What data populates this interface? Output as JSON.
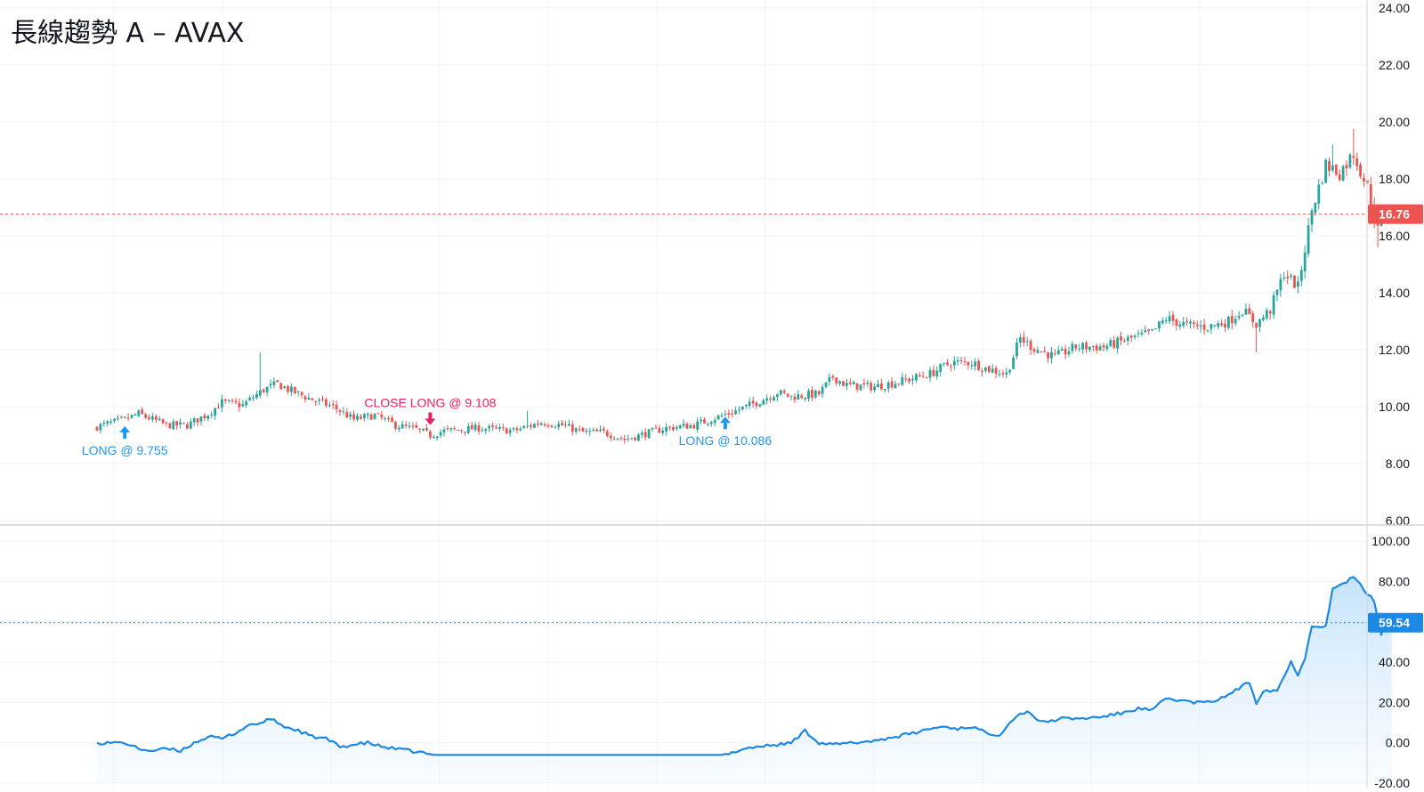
{
  "title": "長線趨勢 A – AVAX",
  "colors": {
    "up": "#26a69a",
    "down": "#ef5350",
    "long_marker": "#2196f3",
    "close_marker": "#e91e63",
    "equity_line": "#1e88e5",
    "equity_fill": "#e3f2fd",
    "price_line": "#ef5350",
    "equity_ref_line": "#1e88e5",
    "grid": "#f0f3fa",
    "axis_text": "#131722",
    "pane_divider": "#d1d4dc"
  },
  "chart_data": [
    {
      "type": "candlestick",
      "pane": "price",
      "ylim": [
        6,
        24
      ],
      "yticks": [
        "24.00",
        "22.00",
        "20.00",
        "18.00",
        "16.00",
        "14.00",
        "12.00",
        "10.00",
        "8.00",
        "6.00"
      ],
      "ytick_values": [
        24,
        22,
        20,
        18,
        16,
        14,
        12,
        10,
        8,
        6
      ],
      "last_price": 16.76,
      "last_price_label": "16.76",
      "grid": true,
      "close_anchors": [
        [
          0,
          9.3
        ],
        [
          8,
          9.55
        ],
        [
          12,
          9.75
        ],
        [
          16,
          9.55
        ],
        [
          20,
          9.35
        ],
        [
          26,
          9.35
        ],
        [
          32,
          9.75
        ],
        [
          36,
          10.15
        ],
        [
          42,
          10.05
        ],
        [
          48,
          10.6
        ],
        [
          52,
          10.8
        ],
        [
          56,
          10.55
        ],
        [
          62,
          10.25
        ],
        [
          68,
          10.0
        ],
        [
          74,
          9.55
        ],
        [
          80,
          9.7
        ],
        [
          86,
          9.35
        ],
        [
          92,
          9.2
        ],
        [
          96,
          9.0
        ],
        [
          100,
          9.15
        ],
        [
          110,
          9.25
        ],
        [
          120,
          9.15
        ],
        [
          128,
          9.45
        ],
        [
          134,
          9.35
        ],
        [
          140,
          9.1
        ],
        [
          146,
          9.1
        ],
        [
          152,
          8.85
        ],
        [
          158,
          9.05
        ],
        [
          164,
          9.25
        ],
        [
          172,
          9.35
        ],
        [
          178,
          9.6
        ],
        [
          184,
          9.85
        ],
        [
          190,
          10.15
        ],
        [
          196,
          10.5
        ],
        [
          200,
          10.35
        ],
        [
          208,
          10.45
        ],
        [
          212,
          11.05
        ],
        [
          216,
          10.75
        ],
        [
          224,
          10.7
        ],
        [
          232,
          10.9
        ],
        [
          240,
          11.15
        ],
        [
          246,
          11.55
        ],
        [
          252,
          11.55
        ],
        [
          256,
          11.35
        ],
        [
          262,
          11.15
        ],
        [
          266,
          12.4
        ],
        [
          270,
          12.05
        ],
        [
          276,
          11.75
        ],
        [
          282,
          12.1
        ],
        [
          290,
          12.1
        ],
        [
          298,
          12.4
        ],
        [
          304,
          12.6
        ],
        [
          308,
          13.1
        ],
        [
          314,
          12.85
        ],
        [
          320,
          12.8
        ],
        [
          326,
          13.0
        ],
        [
          330,
          13.4
        ],
        [
          334,
          12.9
        ],
        [
          338,
          13.4
        ],
        [
          342,
          14.7
        ],
        [
          346,
          14.2
        ],
        [
          350,
          16.9
        ],
        [
          354,
          18.5
        ],
        [
          358,
          18.2
        ],
        [
          362,
          18.9
        ],
        [
          366,
          17.7
        ],
        [
          369,
          16.2
        ],
        [
          371,
          16.9
        ],
        [
          373,
          16.76
        ]
      ],
      "wick_spikes": [
        {
          "index": 47,
          "high": 11.9
        },
        {
          "index": 124,
          "high": 9.85
        },
        {
          "index": 334,
          "low": 11.9
        },
        {
          "index": 356,
          "high": 19.2
        },
        {
          "index": 362,
          "high": 19.75
        },
        {
          "index": 369,
          "low": 15.6
        }
      ],
      "signals": [
        {
          "index": 8,
          "side": "long",
          "label": "LONG @ 9.755",
          "price": 9.755
        },
        {
          "index": 96,
          "side": "close",
          "label": "CLOSE LONG @ 9.108",
          "price": 9.108
        },
        {
          "index": 181,
          "side": "long",
          "label": "LONG @ 10.086",
          "price": 10.086
        }
      ]
    },
    {
      "type": "area",
      "pane": "equity",
      "ylim": [
        -20,
        100
      ],
      "yticks": [
        "100.00",
        "80.00",
        "60.00",
        "40.00",
        "20.00",
        "0.00",
        "-20.00"
      ],
      "ytick_values": [
        100,
        80,
        60,
        40,
        20,
        0,
        -20
      ],
      "last_value": 59.54,
      "last_value_label": "59.54",
      "grid": true,
      "anchors": [
        [
          0,
          0
        ],
        [
          8,
          0
        ],
        [
          12,
          -3
        ],
        [
          16,
          -4
        ],
        [
          20,
          -3
        ],
        [
          24,
          -4
        ],
        [
          28,
          0
        ],
        [
          32,
          3
        ],
        [
          36,
          2
        ],
        [
          40,
          5
        ],
        [
          44,
          9
        ],
        [
          48,
          10
        ],
        [
          50,
          12
        ],
        [
          54,
          8
        ],
        [
          58,
          6
        ],
        [
          62,
          3
        ],
        [
          66,
          2
        ],
        [
          70,
          -2
        ],
        [
          74,
          -1
        ],
        [
          78,
          0
        ],
        [
          82,
          -2
        ],
        [
          86,
          -3
        ],
        [
          90,
          -4
        ],
        [
          94,
          -5
        ],
        [
          96,
          -6
        ],
        [
          181,
          -6
        ],
        [
          186,
          -3
        ],
        [
          190,
          -2
        ],
        [
          196,
          -1
        ],
        [
          200,
          0
        ],
        [
          204,
          6
        ],
        [
          208,
          0
        ],
        [
          212,
          -1
        ],
        [
          218,
          0
        ],
        [
          224,
          1
        ],
        [
          230,
          3
        ],
        [
          236,
          5
        ],
        [
          240,
          7
        ],
        [
          244,
          8
        ],
        [
          248,
          7
        ],
        [
          252,
          8
        ],
        [
          256,
          5
        ],
        [
          260,
          4
        ],
        [
          264,
          12
        ],
        [
          268,
          16
        ],
        [
          272,
          10
        ],
        [
          278,
          12
        ],
        [
          284,
          12
        ],
        [
          290,
          13
        ],
        [
          296,
          15
        ],
        [
          300,
          17
        ],
        [
          304,
          16
        ],
        [
          308,
          22
        ],
        [
          312,
          21
        ],
        [
          316,
          20
        ],
        [
          320,
          20
        ],
        [
          324,
          22
        ],
        [
          328,
          26
        ],
        [
          332,
          30
        ],
        [
          334,
          20
        ],
        [
          336,
          26
        ],
        [
          340,
          26
        ],
        [
          344,
          40
        ],
        [
          346,
          34
        ],
        [
          348,
          42
        ],
        [
          350,
          58
        ],
        [
          354,
          58
        ],
        [
          356,
          76
        ],
        [
          358,
          78
        ],
        [
          362,
          82
        ],
        [
          366,
          74
        ],
        [
          368,
          70
        ],
        [
          370,
          54
        ],
        [
          372,
          64
        ],
        [
          373,
          59.54
        ]
      ]
    }
  ]
}
